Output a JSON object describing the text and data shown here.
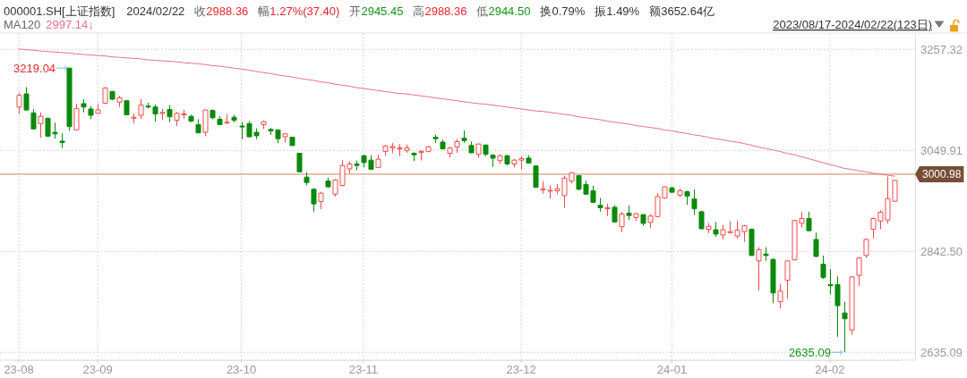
{
  "chart_data": {
    "type": "candlestick",
    "title": "000001.SH[上证指数]",
    "categories": [
      "23-08",
      null,
      null,
      null,
      null,
      null,
      null,
      null,
      null,
      null,
      null,
      "23-09",
      null,
      null,
      null,
      null,
      null,
      null,
      null,
      null,
      null,
      null,
      null,
      null,
      null,
      null,
      null,
      null,
      null,
      null,
      null,
      "23-10",
      null,
      null,
      null,
      null,
      null,
      null,
      null,
      null,
      null,
      null,
      null,
      null,
      null,
      null,
      null,
      null,
      "23-11",
      null,
      null,
      null,
      null,
      null,
      null,
      null,
      null,
      null,
      null,
      null,
      null,
      null,
      null,
      null,
      null,
      null,
      null,
      null,
      null,
      null,
      "23-12",
      null,
      null,
      null,
      null,
      null,
      null,
      null,
      null,
      null,
      null,
      null,
      null,
      null,
      null,
      null,
      null,
      null,
      null,
      null,
      null,
      "24-01",
      null,
      null,
      null,
      null,
      null,
      null,
      null,
      null,
      null,
      null,
      null,
      null,
      null,
      null,
      null,
      null,
      null,
      null,
      null,
      null,
      null,
      "24-02",
      null,
      null,
      null,
      null,
      null,
      null,
      null,
      null,
      null
    ],
    "series": [
      {
        "type": "line",
        "name": "MA120",
        "color": "#e8708a",
        "values": [
          3258,
          3257,
          3256,
          3254,
          3253,
          3252,
          3251,
          3250,
          3248,
          3247,
          3246,
          3245,
          3244,
          3242,
          3241,
          3240,
          3239,
          3238,
          3236,
          3235,
          3234,
          3233,
          3232,
          3230,
          3229,
          3228,
          3226,
          3224,
          3223,
          3221,
          3219,
          3217,
          3215,
          3212,
          3210,
          3208,
          3205,
          3203,
          3201,
          3198,
          3196,
          3194,
          3191,
          3189,
          3186,
          3184,
          3182,
          3179,
          3177,
          3175,
          3173,
          3171,
          3169,
          3167,
          3166,
          3164,
          3162,
          3160,
          3158,
          3156,
          3154,
          3152,
          3150,
          3148,
          3146,
          3145,
          3143,
          3141,
          3139,
          3137,
          3135,
          3133,
          3131,
          3130,
          3128,
          3126,
          3124,
          3122,
          3119,
          3117,
          3115,
          3113,
          3110,
          3108,
          3106,
          3104,
          3101,
          3099,
          3097,
          3095,
          3092,
          3090,
          3087,
          3085,
          3082,
          3080,
          3077,
          3074,
          3072,
          3069,
          3067,
          3064,
          3061,
          3057,
          3054,
          3051,
          3048,
          3044,
          3041,
          3037,
          3033,
          3029,
          3025,
          3021,
          3017,
          3013,
          3011,
          3008,
          3006,
          3003,
          3001,
          2999,
          2997
        ]
      },
      {
        "ohlc": [
          [
            3139,
            3168,
            3125,
            3163
          ],
          [
            3166,
            3180,
            3131,
            3133
          ],
          [
            3127,
            3135,
            3093,
            3094
          ],
          [
            3105,
            3128,
            3076,
            3120
          ],
          [
            3116,
            3117,
            3078,
            3079
          ],
          [
            3087,
            3107,
            3074,
            3084
          ],
          [
            3069,
            3085,
            3055,
            3066
          ],
          [
            3219,
            3219.04,
            3090,
            3099
          ],
          [
            3092,
            3146,
            3092,
            3136
          ],
          [
            3146,
            3155,
            3128,
            3139
          ],
          [
            3135,
            3141,
            3114,
            3122
          ],
          [
            3126,
            3145,
            3125,
            3133
          ],
          [
            3147,
            3180,
            3145,
            3178
          ],
          [
            3171,
            3172,
            3153,
            3155
          ],
          [
            3149,
            3162,
            3139,
            3158
          ],
          [
            3152,
            3153,
            3122,
            3123
          ],
          [
            3116,
            3126,
            3105,
            3118
          ],
          [
            3122,
            3155,
            3115,
            3143
          ],
          [
            3141,
            3148,
            3136,
            3139
          ],
          [
            3139,
            3144,
            3109,
            3125
          ],
          [
            3126,
            3135,
            3112,
            3128
          ],
          [
            3134,
            3143,
            3108,
            3119
          ],
          [
            3112,
            3129,
            3100,
            3126
          ],
          [
            3123,
            3133,
            3115,
            3125
          ],
          [
            3120,
            3123,
            3108,
            3110
          ],
          [
            3103,
            3114,
            3085,
            3086
          ],
          [
            3087,
            3134,
            3079,
            3133
          ],
          [
            3132,
            3134,
            3114,
            3117
          ],
          [
            3114,
            3120,
            3102,
            3103
          ],
          [
            3106,
            3125,
            3104,
            3108
          ],
          [
            3118,
            3123,
            3107,
            3112
          ],
          [
            3100,
            3108,
            3073,
            3098
          ],
          [
            3105,
            3110,
            3076,
            3078
          ],
          [
            3087,
            3095,
            3073,
            3080
          ],
          [
            3103,
            3111,
            3094,
            3109
          ],
          [
            3093,
            3096,
            3082,
            3090
          ],
          [
            3092,
            3093,
            3065,
            3074
          ],
          [
            3078,
            3085,
            3066,
            3084
          ],
          [
            3077,
            3078,
            3059,
            3060
          ],
          [
            3044,
            3045,
            3005,
            3006
          ],
          [
            2995,
            3005,
            2978,
            2984
          ],
          [
            2970,
            2972,
            2924,
            2940
          ],
          [
            2945,
            2965,
            2929,
            2962
          ],
          [
            2987,
            2994,
            2973,
            2975
          ],
          [
            2960,
            2991,
            2955,
            2989
          ],
          [
            2978,
            3030,
            2976,
            3019
          ],
          [
            3012,
            3027,
            3003,
            3022
          ],
          [
            3022,
            3029,
            3009,
            3019
          ],
          [
            3039,
            3041,
            3015,
            3025
          ],
          [
            3030,
            3040,
            3010,
            3011
          ],
          [
            3015,
            3041,
            3014,
            3032
          ],
          [
            3048,
            3061,
            3039,
            3059
          ],
          [
            3055,
            3065,
            3044,
            3058
          ],
          [
            3053,
            3063,
            3038,
            3055
          ],
          [
            3050,
            3062,
            3045,
            3055
          ],
          [
            3044,
            3046,
            3028,
            3041
          ],
          [
            3046,
            3050,
            3029,
            3048
          ],
          [
            3048,
            3059,
            3046,
            3057
          ],
          [
            3077,
            3082,
            3065,
            3074
          ],
          [
            3067,
            3072,
            3052,
            3053
          ],
          [
            3044,
            3057,
            3035,
            3055
          ],
          [
            3057,
            3073,
            3045,
            3068
          ],
          [
            3075,
            3091,
            3065,
            3070
          ],
          [
            3060,
            3068,
            3044,
            3045
          ],
          [
            3042,
            3064,
            3035,
            3063
          ],
          [
            3061,
            3062,
            3038,
            3042
          ],
          [
            3040,
            3042,
            3016,
            3034
          ],
          [
            3029,
            3041,
            3022,
            3039
          ],
          [
            3039,
            3041,
            3019,
            3022
          ],
          [
            3022,
            3032,
            3015,
            3030
          ],
          [
            3030,
            3038,
            3011,
            3033
          ],
          [
            3034,
            3040,
            3023,
            3024
          ],
          [
            3018,
            3019,
            2973,
            2974
          ],
          [
            2969,
            2987,
            2961,
            2971
          ],
          [
            2967,
            2978,
            2951,
            2968
          ],
          [
            2967,
            2981,
            2960,
            2971
          ],
          [
            2957,
            2998,
            2932,
            2993
          ],
          [
            2987,
            3005,
            2982,
            3004
          ],
          [
            2998,
            2999,
            2968,
            2970
          ],
          [
            2980,
            2988,
            2959,
            2960
          ],
          [
            2967,
            2977,
            2942,
            2943
          ],
          [
            2937,
            2952,
            2924,
            2932
          ],
          [
            2930,
            2940,
            2915,
            2932
          ],
          [
            2933,
            2937,
            2901,
            2903
          ],
          [
            2893,
            2924,
            2882,
            2919
          ],
          [
            2921,
            2937,
            2907,
            2916
          ],
          [
            2912,
            2921,
            2905,
            2920
          ],
          [
            2918,
            2919,
            2895,
            2900
          ],
          [
            2902,
            2919,
            2890,
            2915
          ],
          [
            2914,
            2962,
            2912,
            2955
          ],
          [
            2952,
            2976,
            2951,
            2975
          ],
          [
            2973,
            2976,
            2962,
            2964
          ],
          [
            2958,
            2972,
            2954,
            2967
          ],
          [
            2965,
            2967,
            2938,
            2956
          ],
          [
            2950,
            2970,
            2917,
            2930
          ],
          [
            2924,
            2926,
            2888,
            2889
          ],
          [
            2888,
            2901,
            2880,
            2894
          ],
          [
            2887,
            2903,
            2872,
            2878
          ],
          [
            2876,
            2897,
            2867,
            2887
          ],
          [
            2881,
            2904,
            2879,
            2883
          ],
          [
            2874,
            2905,
            2869,
            2886
          ],
          [
            2883,
            2897,
            2862,
            2895
          ],
          [
            2888,
            2889,
            2834,
            2834
          ],
          [
            2823,
            2851,
            2762,
            2846
          ],
          [
            2837,
            2851,
            2823,
            2834
          ],
          [
            2826,
            2828,
            2736,
            2757
          ],
          [
            2739,
            2775,
            2725,
            2761
          ],
          [
            2783,
            2823,
            2745,
            2823
          ],
          [
            2825,
            2907,
            2824,
            2906
          ],
          [
            2900,
            2924,
            2891,
            2910
          ],
          [
            2910,
            2924,
            2884,
            2885
          ],
          [
            2867,
            2881,
            2831,
            2832
          ],
          [
            2816,
            2834,
            2786,
            2789
          ],
          [
            2774,
            2806,
            2754,
            2772
          ],
          [
            2774,
            2791,
            2667,
            2731
          ],
          [
            2716,
            2739,
            2635.09,
            2704
          ],
          [
            2681,
            2791,
            2671,
            2790
          ],
          [
            2793,
            2831,
            2771,
            2829
          ],
          [
            2834,
            2869,
            2829,
            2867
          ],
          [
            2888,
            2912,
            2869,
            2910
          ],
          [
            2905,
            2927,
            2888,
            2923
          ],
          [
            2907,
            2996,
            2900,
            2951
          ],
          [
            2945.45,
            2988.36,
            2944.5,
            2988.36
          ]
        ]
      }
    ],
    "ylim": [
      2619,
      3291
    ],
    "yticks": [
      3257.32,
      3049.91,
      {
        "value": 2842.5,
        "label": "2842.50"
      },
      2635.09
    ],
    "grid": true,
    "legend": "top left",
    "ref_lines": [
      {
        "axis": "y",
        "value": 3000.98,
        "label": "3000.98",
        "color": "#c8865a"
      }
    ],
    "annotations": [
      "2024/02/22",
      "收2988.36",
      "幅1.27%(37.40)",
      "开2945.45",
      "高2988.36",
      "低2944.50",
      "换0.79%",
      "振1.49%",
      "额3652.64亿",
      "2997.14↓",
      "2023/08/17-2024/02/22(123日)",
      "3219.04",
      "2635.09"
    ]
  }
}
